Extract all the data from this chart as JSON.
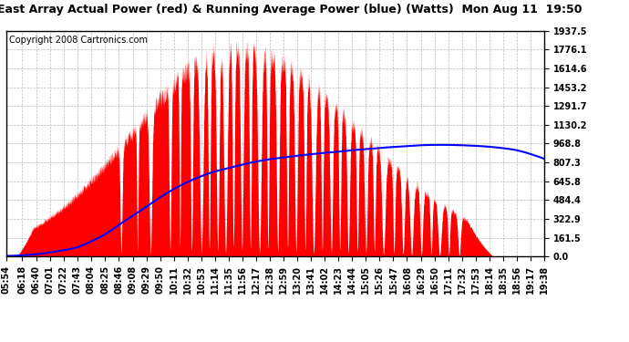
{
  "title": "East Array Actual Power (red) & Running Average Power (blue) (Watts)  Mon Aug 11  19:50",
  "copyright": "Copyright 2008 Cartronics.com",
  "background_color": "#ffffff",
  "plot_bg_color": "#ffffff",
  "grid_color": "#aaaaaa",
  "ytick_labels": [
    "0.0",
    "161.5",
    "322.9",
    "484.4",
    "645.8",
    "807.3",
    "968.8",
    "1130.2",
    "1291.7",
    "1453.2",
    "1614.6",
    "1776.1",
    "1937.5"
  ],
  "ytick_values": [
    0.0,
    161.5,
    322.9,
    484.4,
    645.8,
    807.3,
    968.8,
    1130.2,
    1291.7,
    1453.2,
    1614.6,
    1776.1,
    1937.5
  ],
  "ymax": 1937.5,
  "x_labels": [
    "05:54",
    "06:18",
    "06:40",
    "07:01",
    "07:22",
    "07:43",
    "08:04",
    "08:25",
    "08:46",
    "09:08",
    "09:29",
    "09:50",
    "10:11",
    "10:32",
    "10:53",
    "11:14",
    "11:35",
    "11:56",
    "12:17",
    "12:38",
    "12:59",
    "13:20",
    "13:41",
    "14:02",
    "14:23",
    "14:44",
    "15:05",
    "15:26",
    "15:47",
    "16:08",
    "16:29",
    "16:50",
    "17:11",
    "17:32",
    "17:53",
    "18:14",
    "18:35",
    "18:56",
    "19:17",
    "19:38"
  ],
  "red_color": "#ff0000",
  "blue_color": "#0000ff",
  "title_fontsize": 9,
  "copyright_fontsize": 7,
  "tick_fontsize": 7,
  "fill_alpha": 1.0,
  "line_width": 1.5,
  "ra_x": [
    354,
    378,
    400,
    421,
    442,
    463,
    484,
    505,
    526,
    548,
    569,
    590,
    611,
    632,
    653,
    674,
    695,
    716,
    737,
    758,
    779,
    800,
    821,
    842,
    863,
    884,
    905,
    926,
    947,
    968,
    989,
    1010,
    1031,
    1052,
    1073,
    1094,
    1115,
    1136,
    1157,
    1178
  ],
  "ra_y": [
    5,
    10,
    20,
    35,
    55,
    80,
    130,
    190,
    270,
    350,
    430,
    510,
    580,
    640,
    690,
    730,
    760,
    790,
    815,
    835,
    850,
    865,
    878,
    890,
    900,
    912,
    922,
    932,
    940,
    948,
    955,
    958,
    958,
    955,
    950,
    942,
    930,
    912,
    880,
    840
  ]
}
